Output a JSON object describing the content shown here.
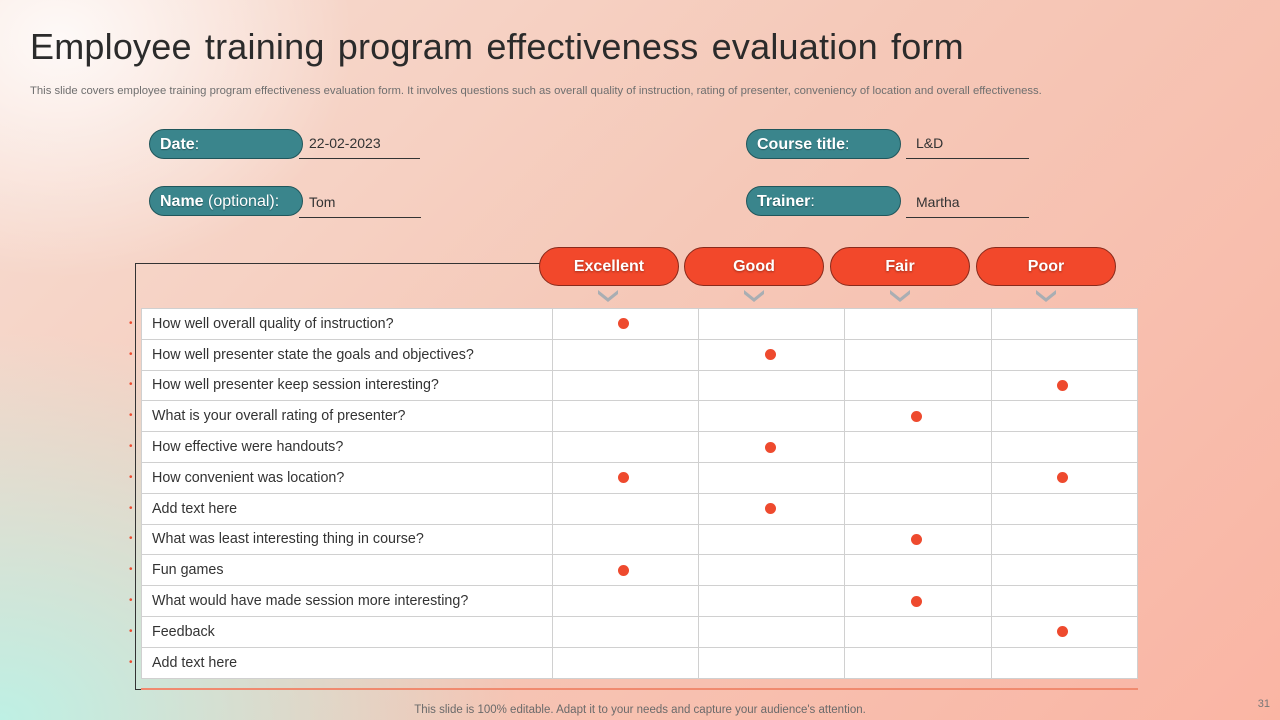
{
  "title": "Employee training program effectiveness evaluation form",
  "subtitle": "This slide covers employee training program effectiveness evaluation form. It involves questions such as  overall quality of instruction, rating of presenter, conveniency of location and overall effectiveness.",
  "fields": {
    "date": {
      "label": "Date",
      "suffix": ":",
      "value": "22-02-2023"
    },
    "name": {
      "label": "Name",
      "label_extra": " (optional):",
      "value": "Tom"
    },
    "course_title": {
      "label": "Course title",
      "suffix": ":",
      "value": "L&D"
    },
    "trainer": {
      "label": "Trainer",
      "suffix": ":",
      "value": "Martha"
    }
  },
  "ratings": [
    "Excellent",
    "Good",
    "Fair",
    "Poor"
  ],
  "rows": [
    {
      "question": "How well overall quality of instruction?",
      "marks": [
        1,
        0,
        0,
        0
      ]
    },
    {
      "question": "How well presenter state the goals and objectives?",
      "marks": [
        0,
        1,
        0,
        0
      ]
    },
    {
      "question": "How well presenter keep session interesting?",
      "marks": [
        0,
        0,
        0,
        1
      ]
    },
    {
      "question": "What is your overall rating of presenter?",
      "marks": [
        0,
        0,
        1,
        0
      ]
    },
    {
      "question": "How effective were handouts?",
      "marks": [
        0,
        1,
        0,
        0
      ]
    },
    {
      "question": "How convenient was location?",
      "marks": [
        1,
        0,
        0,
        1
      ]
    },
    {
      "question": "Add text here",
      "marks": [
        0,
        1,
        0,
        0
      ]
    },
    {
      "question": "What was least interesting thing in course?",
      "marks": [
        0,
        0,
        1,
        0
      ]
    },
    {
      "question": "Fun games",
      "marks": [
        1,
        0,
        0,
        0
      ]
    },
    {
      "question": "What would have made session more interesting?",
      "marks": [
        0,
        0,
        1,
        0
      ]
    },
    {
      "question": "Feedback",
      "marks": [
        0,
        0,
        0,
        1
      ]
    },
    {
      "question": "Add text here",
      "marks": [
        0,
        0,
        0,
        0
      ]
    }
  ],
  "colors": {
    "pill": "#3a858c",
    "rating": "#f2482b",
    "dot": "#ee4a2e"
  },
  "footer": "This slide is 100% editable. Adapt it to your needs and capture your audience's attention.",
  "page_number": "31"
}
